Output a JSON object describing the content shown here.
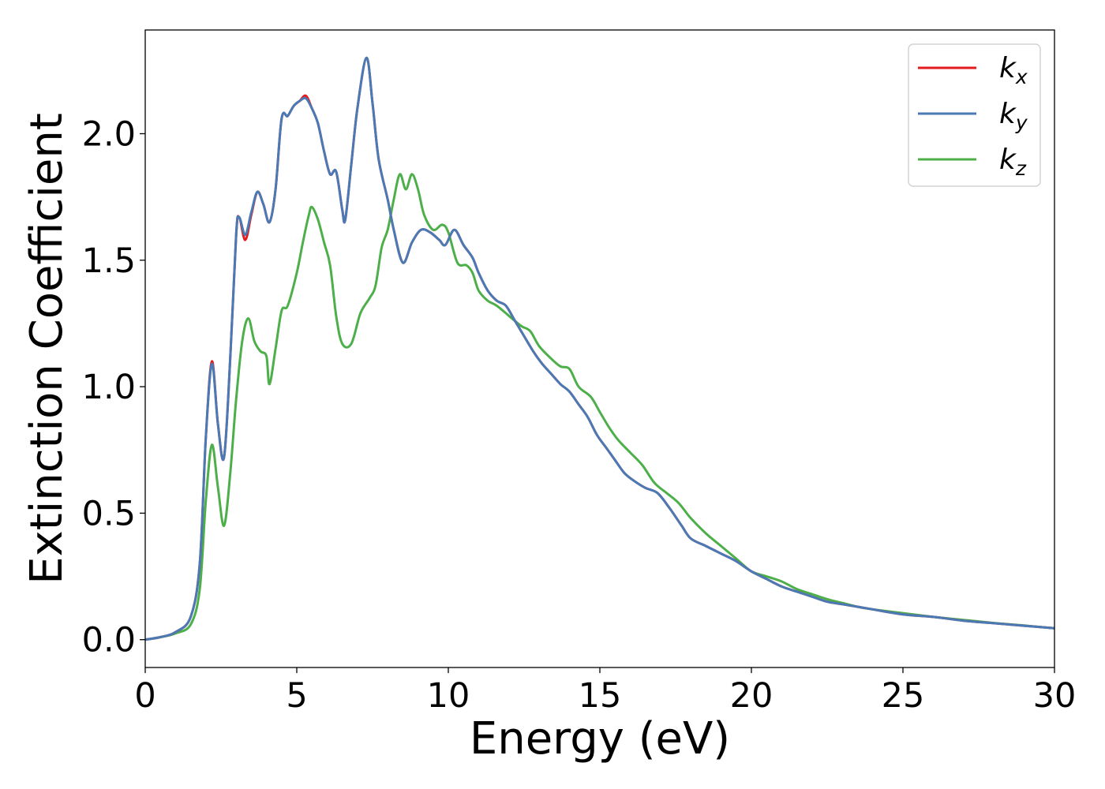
{
  "chart_data": {
    "type": "line",
    "xlabel": "Energy (eV)",
    "ylabel": "Extinction Coefficient",
    "xlim": [
      0,
      30
    ],
    "ylim": [
      -0.11,
      2.41
    ],
    "xticks": [
      "0",
      "5",
      "10",
      "15",
      "20",
      "25",
      "30"
    ],
    "yticks": [
      "0.0",
      "0.5",
      "1.0",
      "1.5",
      "2.0"
    ],
    "grid": false,
    "legend_position": "top-right",
    "series": [
      {
        "name": "k_x",
        "label_main": "k",
        "label_sub": "x",
        "color": "#e41a1c",
        "points": [
          [
            0,
            0
          ],
          [
            0.5,
            0.01
          ],
          [
            1,
            0.03
          ],
          [
            1.5,
            0.09
          ],
          [
            1.8,
            0.3
          ],
          [
            2.0,
            0.8
          ],
          [
            2.2,
            1.1
          ],
          [
            2.4,
            0.85
          ],
          [
            2.6,
            0.72
          ],
          [
            2.8,
            1.1
          ],
          [
            3.0,
            1.6
          ],
          [
            3.1,
            1.67
          ],
          [
            3.3,
            1.58
          ],
          [
            3.5,
            1.68
          ],
          [
            3.7,
            1.77
          ],
          [
            3.9,
            1.72
          ],
          [
            4.1,
            1.65
          ],
          [
            4.3,
            1.78
          ],
          [
            4.5,
            2.06
          ],
          [
            4.7,
            2.07
          ],
          [
            4.9,
            2.11
          ],
          [
            5.1,
            2.13
          ],
          [
            5.3,
            2.15
          ],
          [
            5.5,
            2.1
          ],
          [
            5.7,
            2.04
          ],
          [
            5.9,
            1.93
          ],
          [
            6.1,
            1.84
          ],
          [
            6.3,
            1.85
          ],
          [
            6.5,
            1.7
          ],
          [
            6.6,
            1.66
          ],
          [
            6.8,
            1.88
          ],
          [
            7.0,
            2.1
          ],
          [
            7.3,
            2.3
          ],
          [
            7.5,
            2.12
          ],
          [
            7.7,
            1.9
          ],
          [
            8.0,
            1.74
          ],
          [
            8.2,
            1.62
          ],
          [
            8.5,
            1.49
          ],
          [
            8.8,
            1.57
          ],
          [
            9.1,
            1.62
          ],
          [
            9.4,
            1.61
          ],
          [
            9.7,
            1.58
          ],
          [
            9.9,
            1.56
          ],
          [
            10.2,
            1.62
          ],
          [
            10.5,
            1.56
          ],
          [
            10.8,
            1.51
          ],
          [
            11.0,
            1.45
          ],
          [
            11.3,
            1.38
          ],
          [
            11.6,
            1.34
          ],
          [
            11.9,
            1.32
          ],
          [
            12.2,
            1.26
          ],
          [
            12.5,
            1.2
          ],
          [
            12.8,
            1.14
          ],
          [
            13.1,
            1.09
          ],
          [
            13.4,
            1.05
          ],
          [
            13.7,
            1.01
          ],
          [
            14.0,
            0.98
          ],
          [
            14.3,
            0.93
          ],
          [
            14.6,
            0.88
          ],
          [
            14.9,
            0.81
          ],
          [
            15.2,
            0.76
          ],
          [
            15.5,
            0.71
          ],
          [
            15.8,
            0.66
          ],
          [
            16.1,
            0.63
          ],
          [
            16.5,
            0.6
          ],
          [
            16.9,
            0.58
          ],
          [
            17.3,
            0.52
          ],
          [
            17.7,
            0.45
          ],
          [
            18.0,
            0.4
          ],
          [
            18.5,
            0.37
          ],
          [
            19.0,
            0.34
          ],
          [
            19.5,
            0.31
          ],
          [
            20.0,
            0.27
          ],
          [
            20.5,
            0.24
          ],
          [
            21.0,
            0.21
          ],
          [
            21.5,
            0.19
          ],
          [
            22.0,
            0.17
          ],
          [
            22.5,
            0.15
          ],
          [
            23.0,
            0.14
          ],
          [
            23.5,
            0.13
          ],
          [
            24.0,
            0.12
          ],
          [
            25.0,
            0.1
          ],
          [
            26.0,
            0.09
          ],
          [
            27.0,
            0.075
          ],
          [
            28.0,
            0.065
          ],
          [
            29.0,
            0.055
          ],
          [
            30.0,
            0.045
          ]
        ]
      },
      {
        "name": "k_y",
        "label_main": "k",
        "label_sub": "y",
        "color": "#4a7ab5",
        "points": [
          [
            0,
            0
          ],
          [
            0.5,
            0.01
          ],
          [
            1,
            0.03
          ],
          [
            1.5,
            0.09
          ],
          [
            1.8,
            0.3
          ],
          [
            2.0,
            0.8
          ],
          [
            2.2,
            1.09
          ],
          [
            2.4,
            0.85
          ],
          [
            2.6,
            0.72
          ],
          [
            2.8,
            1.1
          ],
          [
            3.0,
            1.6
          ],
          [
            3.1,
            1.67
          ],
          [
            3.3,
            1.6
          ],
          [
            3.5,
            1.69
          ],
          [
            3.7,
            1.77
          ],
          [
            3.9,
            1.72
          ],
          [
            4.1,
            1.65
          ],
          [
            4.3,
            1.78
          ],
          [
            4.5,
            2.06
          ],
          [
            4.7,
            2.07
          ],
          [
            4.9,
            2.11
          ],
          [
            5.1,
            2.13
          ],
          [
            5.3,
            2.14
          ],
          [
            5.5,
            2.1
          ],
          [
            5.7,
            2.04
          ],
          [
            5.9,
            1.93
          ],
          [
            6.1,
            1.84
          ],
          [
            6.3,
            1.85
          ],
          [
            6.5,
            1.7
          ],
          [
            6.6,
            1.66
          ],
          [
            6.8,
            1.88
          ],
          [
            7.0,
            2.1
          ],
          [
            7.3,
            2.3
          ],
          [
            7.5,
            2.12
          ],
          [
            7.7,
            1.9
          ],
          [
            8.0,
            1.74
          ],
          [
            8.2,
            1.62
          ],
          [
            8.5,
            1.49
          ],
          [
            8.8,
            1.57
          ],
          [
            9.1,
            1.62
          ],
          [
            9.4,
            1.61
          ],
          [
            9.7,
            1.58
          ],
          [
            9.9,
            1.56
          ],
          [
            10.2,
            1.62
          ],
          [
            10.5,
            1.56
          ],
          [
            10.8,
            1.51
          ],
          [
            11.0,
            1.45
          ],
          [
            11.3,
            1.38
          ],
          [
            11.6,
            1.34
          ],
          [
            11.9,
            1.32
          ],
          [
            12.2,
            1.26
          ],
          [
            12.5,
            1.2
          ],
          [
            12.8,
            1.14
          ],
          [
            13.1,
            1.09
          ],
          [
            13.4,
            1.05
          ],
          [
            13.7,
            1.01
          ],
          [
            14.0,
            0.98
          ],
          [
            14.3,
            0.93
          ],
          [
            14.6,
            0.88
          ],
          [
            14.9,
            0.81
          ],
          [
            15.2,
            0.76
          ],
          [
            15.5,
            0.71
          ],
          [
            15.8,
            0.66
          ],
          [
            16.1,
            0.63
          ],
          [
            16.5,
            0.6
          ],
          [
            16.9,
            0.58
          ],
          [
            17.3,
            0.52
          ],
          [
            17.7,
            0.45
          ],
          [
            18.0,
            0.4
          ],
          [
            18.5,
            0.37
          ],
          [
            19.0,
            0.34
          ],
          [
            19.5,
            0.31
          ],
          [
            20.0,
            0.27
          ],
          [
            20.5,
            0.24
          ],
          [
            21.0,
            0.21
          ],
          [
            21.5,
            0.19
          ],
          [
            22.0,
            0.17
          ],
          [
            22.5,
            0.15
          ],
          [
            23.0,
            0.14
          ],
          [
            23.5,
            0.13
          ],
          [
            24.0,
            0.12
          ],
          [
            25.0,
            0.1
          ],
          [
            26.0,
            0.09
          ],
          [
            27.0,
            0.075
          ],
          [
            28.0,
            0.065
          ],
          [
            29.0,
            0.055
          ],
          [
            30.0,
            0.045
          ]
        ]
      },
      {
        "name": "k_z",
        "label_main": "k",
        "label_sub": "z",
        "color": "#4daf4a",
        "points": [
          [
            0,
            0
          ],
          [
            0.5,
            0.01
          ],
          [
            1,
            0.025
          ],
          [
            1.5,
            0.06
          ],
          [
            1.8,
            0.2
          ],
          [
            2.0,
            0.55
          ],
          [
            2.2,
            0.77
          ],
          [
            2.4,
            0.6
          ],
          [
            2.6,
            0.45
          ],
          [
            2.8,
            0.65
          ],
          [
            3.0,
            0.95
          ],
          [
            3.2,
            1.18
          ],
          [
            3.4,
            1.27
          ],
          [
            3.6,
            1.18
          ],
          [
            3.8,
            1.14
          ],
          [
            4.0,
            1.12
          ],
          [
            4.1,
            1.01
          ],
          [
            4.3,
            1.15
          ],
          [
            4.5,
            1.3
          ],
          [
            4.7,
            1.32
          ],
          [
            5.0,
            1.45
          ],
          [
            5.2,
            1.57
          ],
          [
            5.4,
            1.68
          ],
          [
            5.5,
            1.71
          ],
          [
            5.7,
            1.66
          ],
          [
            5.9,
            1.57
          ],
          [
            6.1,
            1.48
          ],
          [
            6.3,
            1.28
          ],
          [
            6.5,
            1.17
          ],
          [
            6.8,
            1.17
          ],
          [
            7.1,
            1.29
          ],
          [
            7.4,
            1.35
          ],
          [
            7.6,
            1.4
          ],
          [
            7.8,
            1.55
          ],
          [
            8.0,
            1.62
          ],
          [
            8.2,
            1.74
          ],
          [
            8.4,
            1.84
          ],
          [
            8.6,
            1.78
          ],
          [
            8.8,
            1.84
          ],
          [
            9.0,
            1.78
          ],
          [
            9.2,
            1.68
          ],
          [
            9.5,
            1.62
          ],
          [
            9.8,
            1.64
          ],
          [
            10.0,
            1.61
          ],
          [
            10.3,
            1.49
          ],
          [
            10.6,
            1.48
          ],
          [
            10.8,
            1.45
          ],
          [
            11.0,
            1.38
          ],
          [
            11.3,
            1.34
          ],
          [
            11.6,
            1.32
          ],
          [
            12.0,
            1.28
          ],
          [
            12.4,
            1.24
          ],
          [
            12.7,
            1.22
          ],
          [
            13.0,
            1.16
          ],
          [
            13.4,
            1.11
          ],
          [
            13.7,
            1.08
          ],
          [
            14.0,
            1.07
          ],
          [
            14.3,
            1.0
          ],
          [
            14.7,
            0.96
          ],
          [
            15.0,
            0.9
          ],
          [
            15.3,
            0.84
          ],
          [
            15.6,
            0.79
          ],
          [
            16.0,
            0.74
          ],
          [
            16.4,
            0.69
          ],
          [
            16.8,
            0.62
          ],
          [
            17.2,
            0.58
          ],
          [
            17.6,
            0.54
          ],
          [
            18.0,
            0.48
          ],
          [
            18.5,
            0.42
          ],
          [
            19.0,
            0.37
          ],
          [
            19.5,
            0.32
          ],
          [
            20.0,
            0.27
          ],
          [
            20.5,
            0.25
          ],
          [
            21.0,
            0.23
          ],
          [
            21.5,
            0.2
          ],
          [
            22.0,
            0.18
          ],
          [
            22.5,
            0.16
          ],
          [
            23.0,
            0.145
          ],
          [
            23.5,
            0.13
          ],
          [
            24.0,
            0.12
          ],
          [
            25.0,
            0.105
          ],
          [
            26.0,
            0.09
          ],
          [
            27.0,
            0.078
          ],
          [
            28.0,
            0.066
          ],
          [
            29.0,
            0.056
          ],
          [
            30.0,
            0.045
          ]
        ]
      }
    ]
  }
}
